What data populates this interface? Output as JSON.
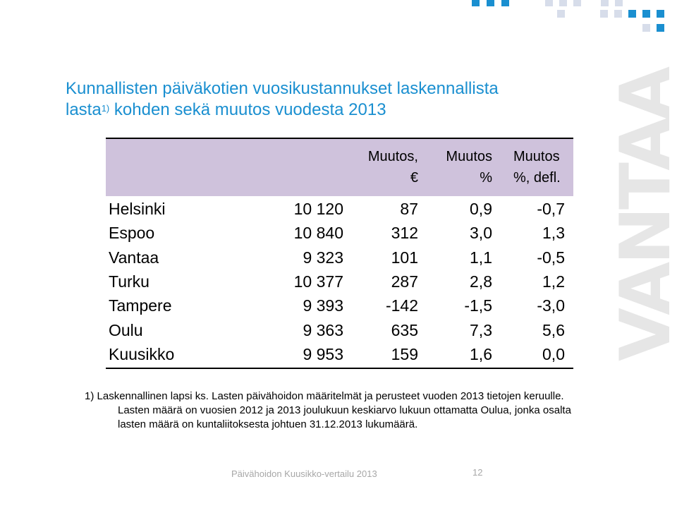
{
  "colors": {
    "title": "#1a8fd0",
    "header_band": "#cfc2dc",
    "watermark": "#e6e6e6",
    "footer": "#a7a7a7"
  },
  "title": {
    "line1": "Kunnallisten päiväkotien vuosikustannukset laskennallista",
    "line2_before": "lasta",
    "line2_sup": "1)",
    "line2_after": " kohden sekä muutos vuodesta 2013"
  },
  "watermark": "VANTAA",
  "table": {
    "headers": {
      "muutos_eur": [
        "Muutos,",
        "€"
      ],
      "muutos_pct": [
        "Muutos",
        "%"
      ],
      "muutos_defl": [
        "Muutos",
        "%, defl."
      ]
    },
    "rows": [
      {
        "city": "Helsinki",
        "cost": "10 120",
        "eur": "87",
        "pct": "0,9",
        "defl": "-0,7"
      },
      {
        "city": "Espoo",
        "cost": "10 840",
        "eur": "312",
        "pct": "3,0",
        "defl": "1,3"
      },
      {
        "city": "Vantaa",
        "cost": "9 323",
        "eur": "101",
        "pct": "1,1",
        "defl": "-0,5"
      },
      {
        "city": "Turku",
        "cost": "10 377",
        "eur": "287",
        "pct": "2,8",
        "defl": "1,2"
      },
      {
        "city": "Tampere",
        "cost": "9 393",
        "eur": "-142",
        "pct": "-1,5",
        "defl": "-3,0"
      },
      {
        "city": "Oulu",
        "cost": "9 363",
        "eur": "635",
        "pct": "7,3",
        "defl": "5,6"
      },
      {
        "city": "Kuusikko",
        "cost": "9 953",
        "eur": "159",
        "pct": "1,6",
        "defl": "0,0"
      }
    ]
  },
  "footnote": [
    "1) Laskennallinen lapsi ks. Lasten päivähoidon määritelmät ja perusteet vuoden 2013 tietojen keruulle.",
    "Lasten määrä on vuosien 2012 ja 2013 joulukuun keskiarvo lukuun ottamatta Oulua, jonka osalta",
    "lasten määrä on kuntaliitoksesta johtuen 31.12.2013 lukumäärä."
  ],
  "footer": {
    "text": "Päivähoidon Kuusikko-vertailu 2013",
    "page": "12"
  }
}
